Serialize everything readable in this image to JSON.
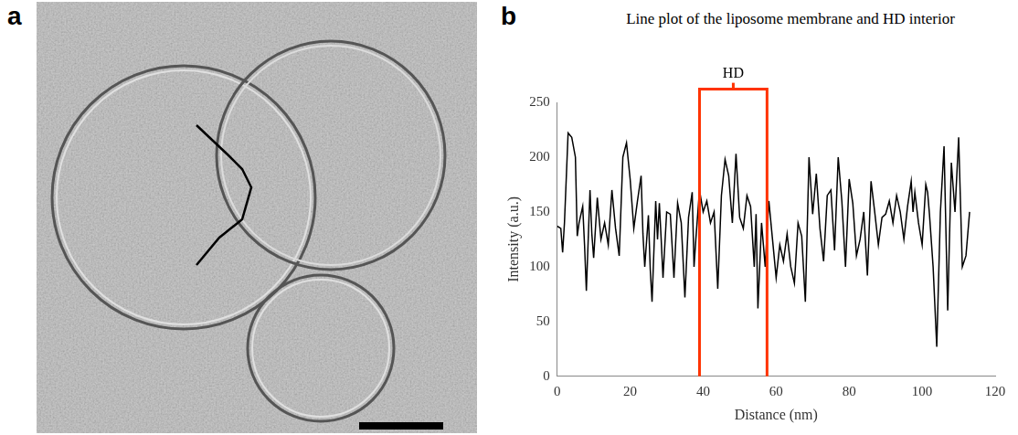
{
  "panel_labels": [
    "a",
    "b"
  ],
  "chart_data": {
    "type": "line",
    "title": "Line plot of the liposome membrane and HD interior",
    "x_label": "Distance (nm)",
    "y_label": "Intensity (a.u.)",
    "x": [
      0,
      1,
      1.5,
      2,
      3,
      4,
      5,
      5.5,
      6,
      7,
      7.5,
      8,
      9,
      9.5,
      10,
      11,
      12,
      13,
      14,
      15,
      16,
      17,
      18,
      19,
      20,
      21,
      22,
      23,
      23.5,
      24,
      25,
      25.5,
      26,
      27,
      27.5,
      28,
      28.5,
      29,
      30,
      31,
      32,
      33,
      34,
      35,
      36,
      37,
      37.5,
      38,
      39,
      40,
      41,
      42,
      43,
      44,
      45,
      46,
      47,
      48,
      49,
      50,
      51,
      52,
      53,
      54,
      54.5,
      55,
      56,
      57,
      58,
      59,
      60,
      61,
      62,
      63,
      64,
      65,
      66,
      67,
      68,
      69,
      70,
      71,
      72,
      73,
      74,
      75,
      76,
      77,
      78,
      79,
      80,
      81,
      82,
      83,
      84,
      85,
      86,
      87,
      88,
      89,
      90,
      91,
      92,
      93,
      94,
      95,
      96,
      97,
      97.5,
      98,
      99,
      100,
      101,
      101.5,
      102,
      103,
      104,
      105,
      106,
      107,
      108,
      109,
      110,
      111,
      112,
      113
    ],
    "values": [
      137,
      135,
      113,
      140,
      222,
      218,
      200,
      128,
      140,
      155,
      120,
      78,
      170,
      130,
      108,
      163,
      125,
      140,
      120,
      170,
      135,
      110,
      200,
      213,
      180,
      135,
      160,
      183,
      130,
      100,
      147,
      98,
      68,
      160,
      125,
      158,
      125,
      90,
      150,
      148,
      90,
      158,
      140,
      72,
      145,
      168,
      100,
      125,
      170,
      150,
      160,
      140,
      150,
      80,
      165,
      198,
      183,
      140,
      203,
      145,
      135,
      165,
      155,
      100,
      148,
      62,
      140,
      100,
      160,
      125,
      90,
      120,
      105,
      130,
      100,
      85,
      140,
      128,
      68,
      200,
      148,
      185,
      135,
      105,
      165,
      170,
      115,
      200,
      160,
      100,
      180,
      158,
      110,
      125,
      150,
      92,
      178,
      150,
      120,
      145,
      148,
      160,
      140,
      165,
      150,
      125,
      155,
      178,
      150,
      168,
      140,
      120,
      175,
      168,
      148,
      100,
      27,
      150,
      210,
      60,
      195,
      150,
      218,
      100,
      110,
      150
    ],
    "color": "#000000",
    "xlim": [
      0,
      120
    ],
    "xticks": [
      0,
      20,
      40,
      60,
      80,
      100,
      120
    ],
    "ylim": [
      0,
      250
    ],
    "yticks": [
      0,
      50,
      100,
      150,
      200,
      250
    ],
    "grid": false,
    "annotations": [
      {
        "label": "HD",
        "x_start": 39,
        "x_end": 57.5,
        "y": 262,
        "color": "#ff3300"
      }
    ]
  }
}
